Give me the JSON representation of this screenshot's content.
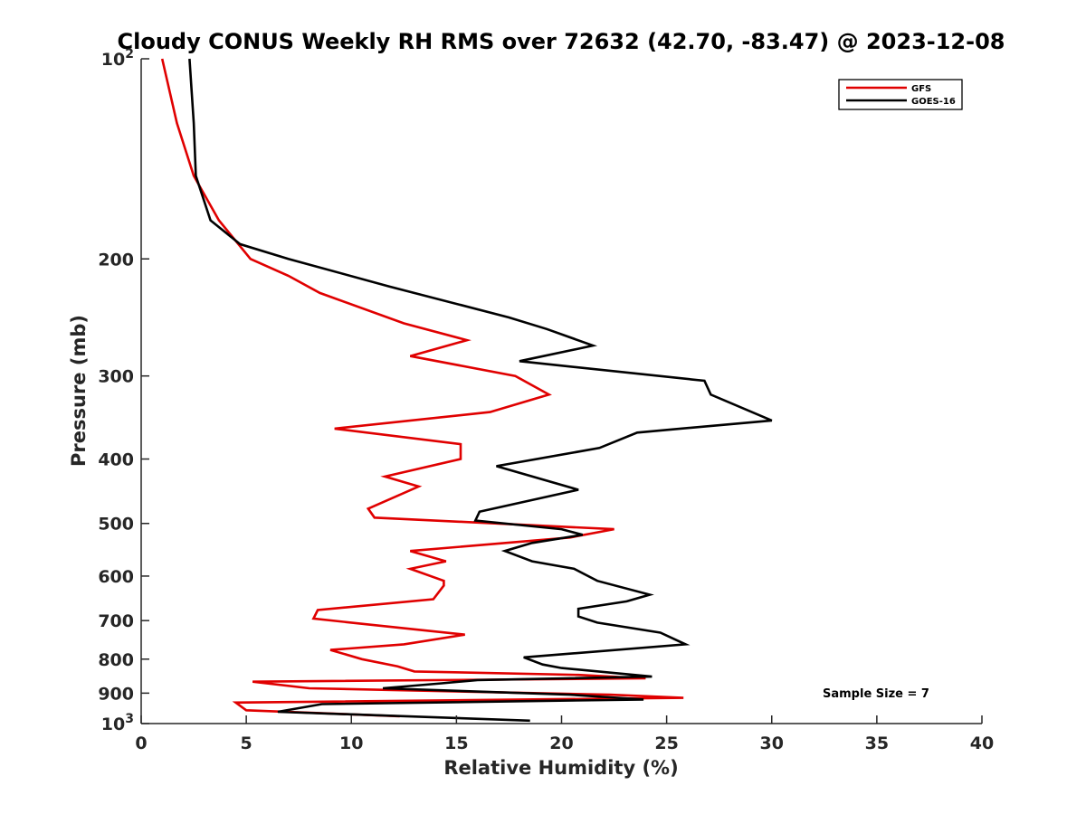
{
  "chart_data": {
    "type": "line",
    "title": "Cloudy CONUS Weekly RH RMS over 72632 (42.70, -83.47) @ 2023-12-08",
    "xlabel": "Relative Humidity (%)",
    "ylabel": "Pressure (mb)",
    "xlim": [
      0,
      40
    ],
    "ylim": [
      100,
      1000
    ],
    "y_scale": "log",
    "y_reversed": true,
    "grid": false,
    "legend_position": "top-right",
    "x_ticks": [
      0,
      5,
      10,
      15,
      20,
      25,
      30,
      35,
      40
    ],
    "y_ticks": [
      {
        "value": 100,
        "label": "10",
        "sup": "2"
      },
      {
        "value": 200,
        "label": "200",
        "sup": ""
      },
      {
        "value": 300,
        "label": "300",
        "sup": ""
      },
      {
        "value": 400,
        "label": "400",
        "sup": ""
      },
      {
        "value": 500,
        "label": "500",
        "sup": ""
      },
      {
        "value": 600,
        "label": "600",
        "sup": ""
      },
      {
        "value": 700,
        "label": "700",
        "sup": ""
      },
      {
        "value": 800,
        "label": "800",
        "sup": ""
      },
      {
        "value": 900,
        "label": "900",
        "sup": ""
      },
      {
        "value": 1000,
        "label": "10",
        "sup": "3"
      }
    ],
    "annotation": "Sample Size = 7",
    "series": [
      {
        "name": "GFS",
        "color": "#e00000",
        "points": [
          [
            1.0,
            100
          ],
          [
            1.7,
            125
          ],
          [
            2.5,
            150
          ],
          [
            3.7,
            175
          ],
          [
            5.2,
            200
          ],
          [
            7.0,
            212
          ],
          [
            8.5,
            225
          ],
          [
            12.5,
            250
          ],
          [
            15.5,
            265
          ],
          [
            12.8,
            280
          ],
          [
            17.8,
            300
          ],
          [
            19.4,
            320
          ],
          [
            16.6,
            340
          ],
          [
            9.2,
            360
          ],
          [
            15.2,
            380
          ],
          [
            15.2,
            400
          ],
          [
            11.6,
            425
          ],
          [
            13.2,
            440
          ],
          [
            10.8,
            475
          ],
          [
            11.1,
            490
          ],
          [
            22.5,
            510
          ],
          [
            20.4,
            525
          ],
          [
            12.8,
            550
          ],
          [
            14.5,
            570
          ],
          [
            12.8,
            585
          ],
          [
            14.4,
            610
          ],
          [
            14.4,
            620
          ],
          [
            13.9,
            650
          ],
          [
            8.4,
            675
          ],
          [
            8.2,
            695
          ],
          [
            10.9,
            710
          ],
          [
            15.4,
            735
          ],
          [
            12.5,
            760
          ],
          [
            9.0,
            775
          ],
          [
            10.5,
            800
          ],
          [
            12.2,
            820
          ],
          [
            13.0,
            835
          ],
          [
            20.8,
            845
          ],
          [
            24.0,
            855
          ],
          [
            5.3,
            865
          ],
          [
            8.0,
            885
          ],
          [
            22.3,
            905
          ],
          [
            25.8,
            915
          ],
          [
            4.5,
            930
          ],
          [
            5.0,
            955
          ],
          [
            12.3,
            975
          ]
        ]
      },
      {
        "name": "GOES-16",
        "color": "#000000",
        "points": [
          [
            2.3,
            100
          ],
          [
            2.5,
            125
          ],
          [
            2.6,
            150
          ],
          [
            3.3,
            175
          ],
          [
            4.7,
            190
          ],
          [
            7.0,
            200
          ],
          [
            11.8,
            220
          ],
          [
            17.5,
            245
          ],
          [
            19.3,
            255
          ],
          [
            21.5,
            270
          ],
          [
            18.0,
            285
          ],
          [
            26.8,
            305
          ],
          [
            27.1,
            320
          ],
          [
            30.0,
            350
          ],
          [
            23.6,
            365
          ],
          [
            21.8,
            385
          ],
          [
            16.9,
            410
          ],
          [
            20.8,
            445
          ],
          [
            16.1,
            480
          ],
          [
            15.9,
            495
          ],
          [
            20.0,
            510
          ],
          [
            21.0,
            520
          ],
          [
            18.6,
            535
          ],
          [
            17.3,
            550
          ],
          [
            18.6,
            570
          ],
          [
            20.6,
            585
          ],
          [
            21.7,
            610
          ],
          [
            24.2,
            640
          ],
          [
            23.1,
            655
          ],
          [
            20.8,
            672
          ],
          [
            20.8,
            690
          ],
          [
            21.7,
            705
          ],
          [
            24.7,
            730
          ],
          [
            25.9,
            760
          ],
          [
            18.2,
            795
          ],
          [
            19.1,
            815
          ],
          [
            20.0,
            825
          ],
          [
            24.3,
            850
          ],
          [
            16.0,
            860
          ],
          [
            14.3,
            870
          ],
          [
            11.5,
            885
          ],
          [
            20.4,
            905
          ],
          [
            21.6,
            910
          ],
          [
            23.9,
            920
          ],
          [
            8.6,
            935
          ],
          [
            6.5,
            960
          ],
          [
            18.5,
            990
          ]
        ]
      }
    ]
  }
}
